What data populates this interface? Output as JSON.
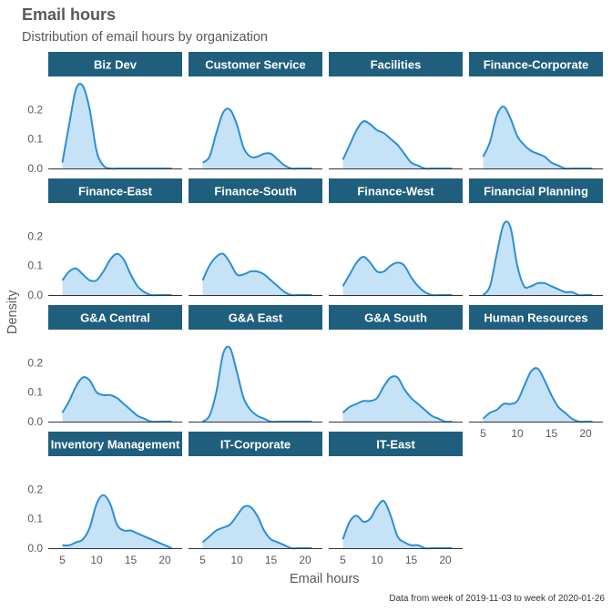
{
  "title": "Email hours",
  "subtitle": "Distribution of email hours by organization",
  "caption": "Data from week of 2019-11-03 to week of 2020-01-26",
  "colors": {
    "strip_bg": "#1f5f7d",
    "strip_text": "#ffffff",
    "line": "#2a8fd6",
    "fill": "#c6e2f7",
    "axis_text": "#595959"
  },
  "chart_data": {
    "type": "area",
    "xlabel": "Email hours",
    "ylabel": "Density",
    "xlim": [
      4,
      22
    ],
    "ylim": [
      0,
      0.3
    ],
    "xticks": [
      5,
      10,
      15,
      20
    ],
    "yticks": [
      0.0,
      0.1,
      0.2
    ],
    "ytick_labels": [
      "0.0",
      "0.1",
      "0.2"
    ],
    "xtick_labels": [
      "5",
      "10",
      "15",
      "20"
    ],
    "grid": false,
    "x": [
      5,
      6,
      7,
      8,
      9,
      10,
      11,
      12,
      13,
      14,
      15,
      16,
      17,
      18,
      19,
      20,
      21
    ],
    "series": [
      {
        "name": "Biz Dev",
        "values": [
          0.02,
          0.15,
          0.27,
          0.28,
          0.2,
          0.06,
          0.01,
          0.0,
          0.0,
          0.0,
          0.0,
          0.0,
          0.0,
          0.0,
          0.0,
          0.0,
          0.0
        ]
      },
      {
        "name": "Customer Service",
        "values": [
          0.02,
          0.04,
          0.12,
          0.19,
          0.2,
          0.15,
          0.07,
          0.04,
          0.04,
          0.05,
          0.05,
          0.03,
          0.01,
          0.0,
          0.0,
          0.0,
          0.0
        ]
      },
      {
        "name": "Facilities",
        "values": [
          0.03,
          0.08,
          0.13,
          0.16,
          0.15,
          0.13,
          0.12,
          0.1,
          0.08,
          0.05,
          0.02,
          0.01,
          0.0,
          0.0,
          0.0,
          0.0,
          0.0
        ]
      },
      {
        "name": "Finance-Corporate",
        "values": [
          0.04,
          0.09,
          0.18,
          0.21,
          0.17,
          0.11,
          0.08,
          0.06,
          0.05,
          0.04,
          0.02,
          0.01,
          0.0,
          0.0,
          0.0,
          0.0,
          0.0
        ]
      },
      {
        "name": "Finance-East",
        "values": [
          0.05,
          0.08,
          0.09,
          0.07,
          0.05,
          0.05,
          0.08,
          0.12,
          0.14,
          0.12,
          0.07,
          0.03,
          0.01,
          0.0,
          0.0,
          0.0,
          0.0
        ]
      },
      {
        "name": "Finance-South",
        "values": [
          0.05,
          0.1,
          0.13,
          0.14,
          0.11,
          0.07,
          0.07,
          0.08,
          0.08,
          0.07,
          0.05,
          0.03,
          0.01,
          0.0,
          0.0,
          0.0,
          0.0
        ]
      },
      {
        "name": "Finance-West",
        "values": [
          0.03,
          0.07,
          0.11,
          0.13,
          0.11,
          0.08,
          0.08,
          0.1,
          0.11,
          0.1,
          0.06,
          0.03,
          0.01,
          0.0,
          0.0,
          0.0,
          0.0
        ]
      },
      {
        "name": "Financial Planning",
        "values": [
          0.0,
          0.03,
          0.14,
          0.24,
          0.23,
          0.1,
          0.03,
          0.03,
          0.04,
          0.04,
          0.03,
          0.02,
          0.01,
          0.01,
          0.0,
          0.0,
          0.0
        ]
      },
      {
        "name": "G&A Central",
        "values": [
          0.03,
          0.07,
          0.12,
          0.15,
          0.14,
          0.1,
          0.09,
          0.09,
          0.08,
          0.06,
          0.04,
          0.02,
          0.01,
          0.0,
          0.0,
          0.0,
          0.0
        ]
      },
      {
        "name": "G&A East",
        "values": [
          0.0,
          0.02,
          0.1,
          0.23,
          0.25,
          0.17,
          0.08,
          0.04,
          0.02,
          0.01,
          0.0,
          0.0,
          0.0,
          0.0,
          0.0,
          0.0,
          0.0
        ]
      },
      {
        "name": "G&A South",
        "values": [
          0.03,
          0.05,
          0.06,
          0.07,
          0.07,
          0.08,
          0.12,
          0.15,
          0.15,
          0.11,
          0.08,
          0.06,
          0.04,
          0.02,
          0.01,
          0.0,
          0.0
        ]
      },
      {
        "name": "Human Resources",
        "values": [
          0.01,
          0.03,
          0.04,
          0.06,
          0.06,
          0.07,
          0.12,
          0.17,
          0.18,
          0.14,
          0.09,
          0.05,
          0.03,
          0.01,
          0.0,
          0.0,
          0.0
        ]
      },
      {
        "name": "Inventory Management",
        "values": [
          0.01,
          0.01,
          0.02,
          0.03,
          0.07,
          0.15,
          0.18,
          0.15,
          0.08,
          0.06,
          0.06,
          0.05,
          0.04,
          0.03,
          0.02,
          0.01,
          0.0
        ]
      },
      {
        "name": "IT-Corporate",
        "values": [
          0.02,
          0.04,
          0.06,
          0.07,
          0.08,
          0.11,
          0.14,
          0.14,
          0.11,
          0.06,
          0.03,
          0.02,
          0.01,
          0.0,
          0.0,
          0.0,
          0.0
        ]
      },
      {
        "name": "IT-East",
        "values": [
          0.03,
          0.09,
          0.11,
          0.09,
          0.1,
          0.14,
          0.16,
          0.11,
          0.04,
          0.02,
          0.01,
          0.01,
          0.0,
          0.0,
          0.0,
          0.0,
          0.0
        ]
      }
    ],
    "facet_columns": 4,
    "x_axis_under": [
      "Human Resources",
      "Inventory Management",
      "IT-Corporate",
      "IT-East"
    ]
  }
}
